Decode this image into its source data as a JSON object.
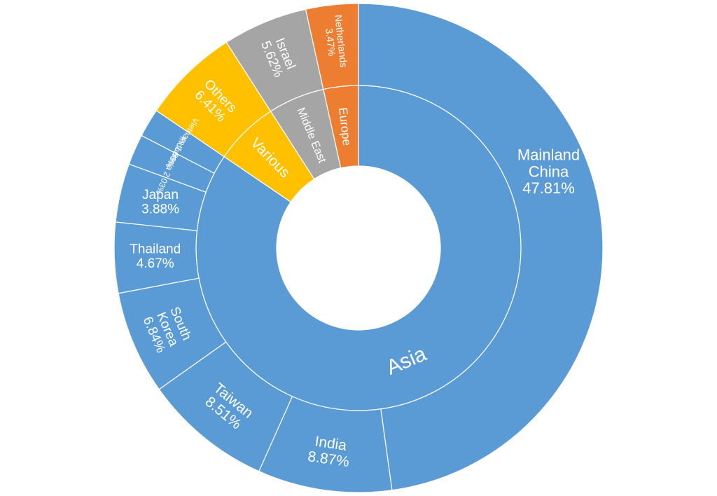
{
  "chart_data": {
    "type": "sunburst",
    "title": "",
    "inner_ring": [
      {
        "name": "Asia",
        "value": 84.5,
        "color": "#5b9bd5"
      },
      {
        "name": "Various",
        "value": 6.41,
        "color": "#ffc000"
      },
      {
        "name": "Middle East",
        "value": 5.62,
        "color": "#a5a5a5"
      },
      {
        "name": "Europe",
        "value": 3.47,
        "color": "#ed7d31"
      }
    ],
    "outer_ring": [
      {
        "parent": "Asia",
        "name": "Mainland China",
        "value": 47.81,
        "label": "Mainland China 47.81%"
      },
      {
        "parent": "Asia",
        "name": "India",
        "value": 8.87,
        "label": "India 8.87%"
      },
      {
        "parent": "Asia",
        "name": "Taiwan",
        "value": 8.51,
        "label": "Taiwan 8.51%"
      },
      {
        "parent": "Asia",
        "name": "South Korea",
        "value": 6.84,
        "label": "South Korea 6.84%"
      },
      {
        "parent": "Asia",
        "name": "Thailand",
        "value": 4.67,
        "label": "Thailand 4.67%"
      },
      {
        "parent": "Asia",
        "name": "Japan",
        "value": 3.88,
        "label": "Japan 3.88%"
      },
      {
        "parent": "Asia",
        "name": "Indonesia",
        "value": 2.03,
        "label": "Indonesia 2.03%"
      },
      {
        "parent": "Asia",
        "name": "Vietnam",
        "value": 1.89,
        "label": "Vietnam 1.89%"
      },
      {
        "parent": "Various",
        "name": "Others",
        "value": 6.41,
        "label": "Others 6.41%"
      },
      {
        "parent": "Middle East",
        "name": "Israel",
        "value": 5.62,
        "label": "Israel 5.62%"
      },
      {
        "parent": "Europe",
        "name": "Netherlands",
        "value": 3.47,
        "label": "Netherlands 3.47%"
      }
    ]
  }
}
